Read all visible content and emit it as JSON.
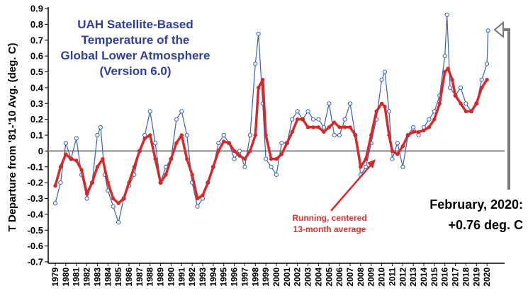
{
  "chart_data": {
    "type": "line",
    "title_lines": [
      "UAH Satellite-Based",
      "Temperature of the",
      "Global Lower Atmosphere",
      "(Version 6.0)"
    ],
    "ylabel": "T Departure from '81-'10 Avg. (deg. C)",
    "xlabel": "",
    "ylim": [
      -0.7,
      0.9
    ],
    "yticks": [
      "0.9",
      "0.8",
      "0.7",
      "0.6",
      "0.5",
      "0.4",
      "0.3",
      "0.2",
      "0.1",
      "0",
      "-0.1",
      "-0.2",
      "-0.3",
      "-0.4",
      "-0.5",
      "-0.6",
      "-0.7"
    ],
    "xticks": [
      "1979",
      "1980",
      "1981",
      "1982",
      "1983",
      "1984",
      "1985",
      "1986",
      "1987",
      "1988",
      "1989",
      "1990",
      "1991",
      "1992",
      "1993",
      "1994",
      "1995",
      "1996",
      "1997",
      "1998",
      "1999",
      "2000",
      "2001",
      "2002",
      "2003",
      "2004",
      "2005",
      "2006",
      "2007",
      "2008",
      "2009",
      "2010",
      "2011",
      "2012",
      "2013",
      "2014",
      "2015",
      "2016",
      "2017",
      "2018",
      "2019",
      "2020"
    ],
    "grid": false,
    "zero_line": true,
    "callout": {
      "line1": "February, 2020:",
      "line2": "+0.76 deg. C"
    },
    "annotation": {
      "line1": "Running, centered",
      "line2": "13-month average"
    },
    "series": [
      {
        "kind": "monthly",
        "color": "#3a5fc0",
        "x": [
          1979.0,
          1979.5,
          1980.0,
          1980.5,
          1981.0,
          1981.5,
          1982.0,
          1982.5,
          1983.0,
          1983.3,
          1983.7,
          1984.0,
          1984.5,
          1985.0,
          1985.5,
          1986.0,
          1986.5,
          1987.0,
          1987.5,
          1988.0,
          1988.5,
          1989.0,
          1989.5,
          1990.0,
          1990.5,
          1991.0,
          1991.5,
          1992.0,
          1992.5,
          1993.0,
          1993.5,
          1994.0,
          1994.5,
          1995.0,
          1995.5,
          1996.0,
          1996.5,
          1997.0,
          1997.5,
          1998.0,
          1998.3,
          1998.7,
          1999.0,
          1999.5,
          2000.0,
          2000.5,
          2001.0,
          2001.5,
          2002.0,
          2002.5,
          2003.0,
          2003.5,
          2004.0,
          2004.5,
          2005.0,
          2005.5,
          2006.0,
          2006.5,
          2007.0,
          2007.5,
          2008.0,
          2008.5,
          2009.0,
          2009.5,
          2010.0,
          2010.3,
          2010.7,
          2011.0,
          2011.5,
          2012.0,
          2012.5,
          2013.0,
          2013.5,
          2014.0,
          2014.5,
          2015.0,
          2015.5,
          2016.0,
          2016.2,
          2016.5,
          2017.0,
          2017.5,
          2018.0,
          2018.5,
          2019.0,
          2019.5,
          2020.0,
          2020.1
        ],
        "y": [
          -0.33,
          -0.2,
          0.05,
          -0.05,
          0.08,
          -0.15,
          -0.3,
          -0.2,
          0.1,
          0.15,
          -0.15,
          -0.25,
          -0.35,
          -0.45,
          -0.3,
          -0.22,
          -0.15,
          0.0,
          0.1,
          0.25,
          0.05,
          -0.2,
          -0.1,
          -0.05,
          0.2,
          0.25,
          0.1,
          -0.2,
          -0.35,
          -0.3,
          -0.2,
          -0.1,
          0.05,
          0.1,
          0.05,
          -0.05,
          0.0,
          -0.1,
          0.1,
          0.55,
          0.74,
          0.3,
          -0.05,
          -0.1,
          -0.15,
          0.05,
          0.05,
          0.2,
          0.25,
          0.2,
          0.25,
          0.2,
          0.2,
          0.15,
          0.3,
          0.1,
          0.1,
          0.2,
          0.3,
          0.1,
          -0.15,
          -0.1,
          0.05,
          0.2,
          0.45,
          0.5,
          0.25,
          -0.05,
          0.05,
          -0.1,
          0.1,
          0.15,
          0.1,
          0.15,
          0.2,
          0.25,
          0.35,
          0.6,
          0.86,
          0.4,
          0.35,
          0.4,
          0.3,
          0.25,
          0.3,
          0.45,
          0.55,
          0.76
        ]
      },
      {
        "kind": "running-13-month",
        "color": "#d42a2a",
        "x": [
          1979.0,
          1979.5,
          1980.0,
          1980.5,
          1981.0,
          1981.5,
          1982.0,
          1982.5,
          1983.0,
          1983.5,
          1984.0,
          1984.5,
          1985.0,
          1985.5,
          1986.0,
          1986.5,
          1987.0,
          1987.5,
          1988.0,
          1988.5,
          1989.0,
          1989.5,
          1990.0,
          1990.5,
          1991.0,
          1991.5,
          1992.0,
          1992.5,
          1993.0,
          1993.5,
          1994.0,
          1994.5,
          1995.0,
          1995.5,
          1996.0,
          1996.5,
          1997.0,
          1997.5,
          1998.0,
          1998.3,
          1998.7,
          1999.0,
          1999.5,
          2000.0,
          2000.5,
          2001.0,
          2001.5,
          2002.0,
          2002.5,
          2003.0,
          2003.5,
          2004.0,
          2004.5,
          2005.0,
          2005.5,
          2006.0,
          2006.5,
          2007.0,
          2007.5,
          2008.0,
          2008.5,
          2009.0,
          2009.5,
          2010.0,
          2010.3,
          2010.7,
          2011.0,
          2011.5,
          2012.0,
          2012.5,
          2013.0,
          2013.5,
          2014.0,
          2014.5,
          2015.0,
          2015.5,
          2016.0,
          2016.3,
          2016.7,
          2017.0,
          2017.5,
          2018.0,
          2018.5,
          2019.0,
          2019.5,
          2020.0
        ],
        "y": [
          -0.22,
          -0.1,
          -0.02,
          -0.05,
          -0.06,
          -0.12,
          -0.27,
          -0.2,
          -0.1,
          -0.05,
          -0.2,
          -0.3,
          -0.33,
          -0.3,
          -0.2,
          -0.1,
          0.0,
          0.08,
          0.1,
          -0.05,
          -0.2,
          -0.15,
          -0.05,
          0.05,
          0.1,
          -0.05,
          -0.15,
          -0.3,
          -0.28,
          -0.2,
          -0.1,
          0.0,
          0.06,
          0.05,
          0.0,
          -0.03,
          -0.05,
          0.0,
          0.1,
          0.4,
          0.45,
          0.1,
          -0.05,
          -0.05,
          -0.02,
          0.05,
          0.12,
          0.2,
          0.2,
          0.15,
          0.15,
          0.15,
          0.12,
          0.15,
          0.18,
          0.15,
          0.15,
          0.15,
          0.1,
          -0.1,
          -0.05,
          0.1,
          0.25,
          0.3,
          0.28,
          0.1,
          0.0,
          -0.02,
          0.03,
          0.1,
          0.12,
          0.12,
          0.13,
          0.15,
          0.2,
          0.3,
          0.5,
          0.52,
          0.45,
          0.35,
          0.3,
          0.25,
          0.25,
          0.3,
          0.4,
          0.45
        ]
      }
    ]
  }
}
